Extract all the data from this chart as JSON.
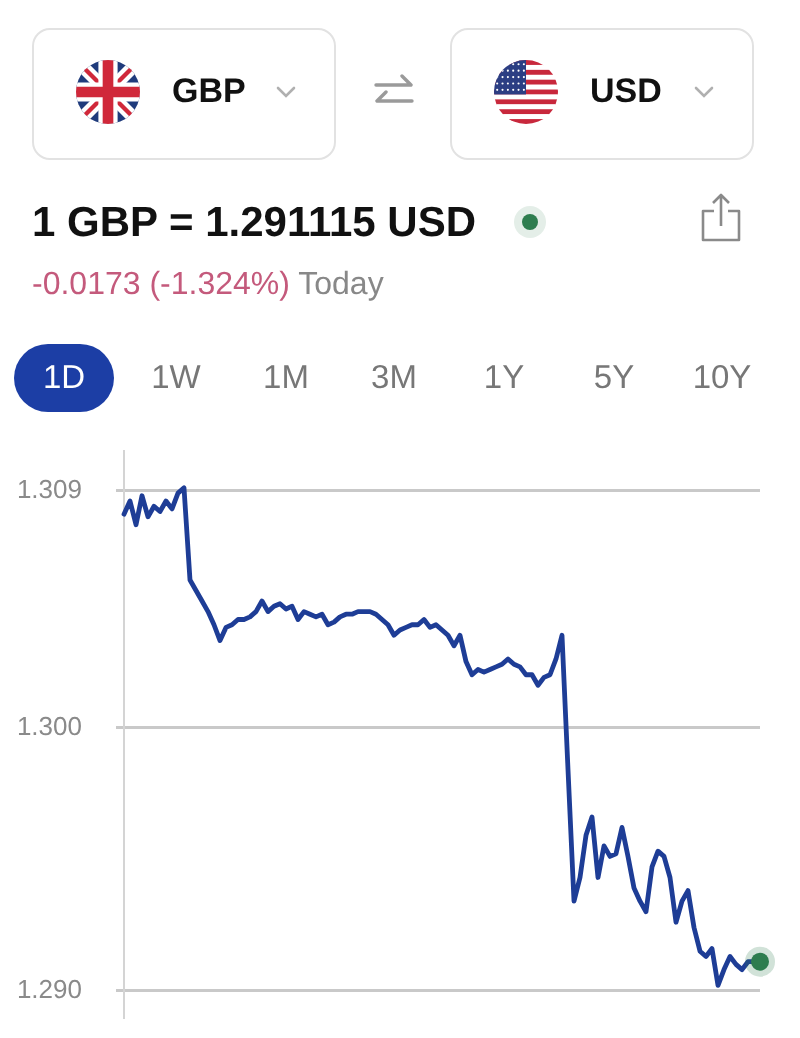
{
  "chart_data": {
    "type": "line",
    "title": "1 GBP = 1.291115 USD",
    "subtitle": "-0.0173 (-1.324%) Today",
    "annotations": [
      "GBP",
      "USD",
      "1D",
      "1W",
      "1M",
      "3M",
      "1Y",
      "5Y",
      "10Y"
    ],
    "categories": [
      null,
      null,
      null,
      null,
      null,
      null,
      null,
      null,
      null,
      null,
      null,
      null,
      null,
      null,
      null,
      null,
      null,
      null,
      null,
      null,
      null,
      null,
      null,
      null,
      null,
      null,
      null,
      null,
      null,
      null,
      null,
      null,
      null,
      null,
      null,
      null,
      null,
      null,
      null,
      null,
      null,
      null,
      null,
      null,
      null,
      null,
      null,
      null,
      null,
      null,
      null,
      null,
      null,
      null,
      null,
      null,
      null,
      null,
      null,
      null,
      null,
      null,
      null,
      null,
      null,
      null,
      null,
      null,
      null,
      null,
      null,
      null,
      null,
      null,
      null,
      null,
      null,
      null,
      null,
      null,
      null,
      null,
      null,
      null,
      null,
      null,
      null,
      null,
      null,
      null,
      null,
      null,
      null,
      null,
      null,
      null,
      null,
      null,
      null,
      null,
      null,
      null,
      null,
      null,
      null,
      null,
      null
    ],
    "series": [
      {
        "color": "#1e3d96",
        "values": [
          1.3081,
          1.3086,
          1.3077,
          1.3088,
          1.308,
          1.3084,
          1.3082,
          1.3086,
          1.3083,
          1.3089,
          1.3091,
          1.3056,
          1.3052,
          1.3048,
          1.3044,
          1.3039,
          1.3033,
          1.3038,
          1.3039,
          1.3041,
          1.3041,
          1.3042,
          1.3044,
          1.3048,
          1.3044,
          1.3046,
          1.3047,
          1.3045,
          1.3046,
          1.3041,
          1.3044,
          1.3043,
          1.3042,
          1.3043,
          1.3039,
          1.304,
          1.3042,
          1.3043,
          1.3043,
          1.3044,
          1.3044,
          1.3044,
          1.3043,
          1.3041,
          1.3039,
          1.3035,
          1.3037,
          1.3038,
          1.3039,
          1.3039,
          1.3041,
          1.3038,
          1.3039,
          1.3037,
          1.3035,
          1.3031,
          1.3035,
          1.3025,
          1.302,
          1.3022,
          1.3021,
          1.3022,
          1.3023,
          1.3024,
          1.3026,
          1.3024,
          1.3023,
          1.302,
          1.302,
          1.3016,
          1.3019,
          1.302,
          1.3026,
          1.3035,
          1.2984,
          1.2934,
          1.2943,
          1.2959,
          1.2966,
          1.2943,
          1.2955,
          1.2951,
          1.2952,
          1.2962,
          1.2951,
          1.2939,
          1.2934,
          1.293,
          1.2947,
          1.2953,
          1.2951,
          1.2943,
          1.2926,
          1.2934,
          1.2938,
          1.2924,
          1.2915,
          1.2913,
          1.2916,
          1.2902,
          1.2908,
          1.2913,
          1.291,
          1.2908,
          1.2911,
          1.2911,
          1.2911
        ]
      },
      {
        "type": "scatter",
        "color": "#2e7d4f",
        "marker": "circle",
        "values": [
          null,
          null,
          null,
          null,
          null,
          null,
          null,
          null,
          null,
          null,
          null,
          null,
          null,
          null,
          null,
          null,
          null,
          null,
          null,
          null,
          null,
          null,
          null,
          null,
          null,
          null,
          null,
          null,
          null,
          null,
          null,
          null,
          null,
          null,
          null,
          null,
          null,
          null,
          null,
          null,
          null,
          null,
          null,
          null,
          null,
          null,
          null,
          null,
          null,
          null,
          null,
          null,
          null,
          null,
          null,
          null,
          null,
          null,
          null,
          null,
          null,
          null,
          null,
          null,
          null,
          null,
          null,
          null,
          null,
          null,
          null,
          null,
          null,
          null,
          null,
          null,
          null,
          null,
          null,
          null,
          null,
          null,
          null,
          null,
          null,
          null,
          null,
          null,
          null,
          null,
          null,
          null,
          null,
          null,
          null,
          null,
          null,
          null,
          null,
          null,
          null,
          null,
          null,
          null,
          null,
          null,
          1.2911
        ]
      }
    ],
    "ylim": [
      1.289,
      1.3105
    ],
    "yticks": [
      {
        "value": 1.29,
        "label": "1.290"
      },
      {
        "value": 1.3,
        "label": "1.300"
      },
      1.309
    ],
    "grid": "y",
    "tick_labels": "y"
  }
}
